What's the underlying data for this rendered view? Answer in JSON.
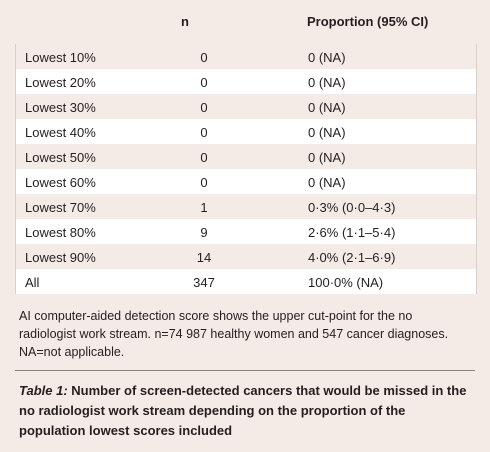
{
  "table": {
    "header": [
      "n",
      "Proportion (95% CI)"
    ],
    "rows": [
      [
        "Lowest 10%",
        0,
        "0 (NA)"
      ],
      [
        "Lowest 20%",
        0,
        "0 (NA)"
      ],
      [
        "Lowest 30%",
        0,
        "0 (NA)"
      ],
      [
        "Lowest 40%",
        0,
        "0 (NA)"
      ],
      [
        "Lowest 50%",
        0,
        "0 (NA)"
      ],
      [
        "Lowest 60%",
        0,
        "0 (NA)"
      ],
      [
        "Lowest 70%",
        1,
        "0·3% (0·0–4·3)"
      ],
      [
        "Lowest 80%",
        9,
        "2·6% (1·1–5·4)"
      ],
      [
        "Lowest 90%",
        14,
        "4·0% (2·1–6·9)"
      ],
      [
        "All",
        347,
        "100·0% (NA)"
      ]
    ],
    "footnote": "AI computer-aided detection score shows the upper cut-point for the no radiologist work stream. n=74 987 healthy women and 547 cancer diagnoses. NA=not applicable.",
    "caption": {
      "label": "Table 1:",
      "text": " Number of screen-detected cancers that would be missed in the no radiologist work stream depending on the proportion of the population lowest scores included"
    }
  }
}
